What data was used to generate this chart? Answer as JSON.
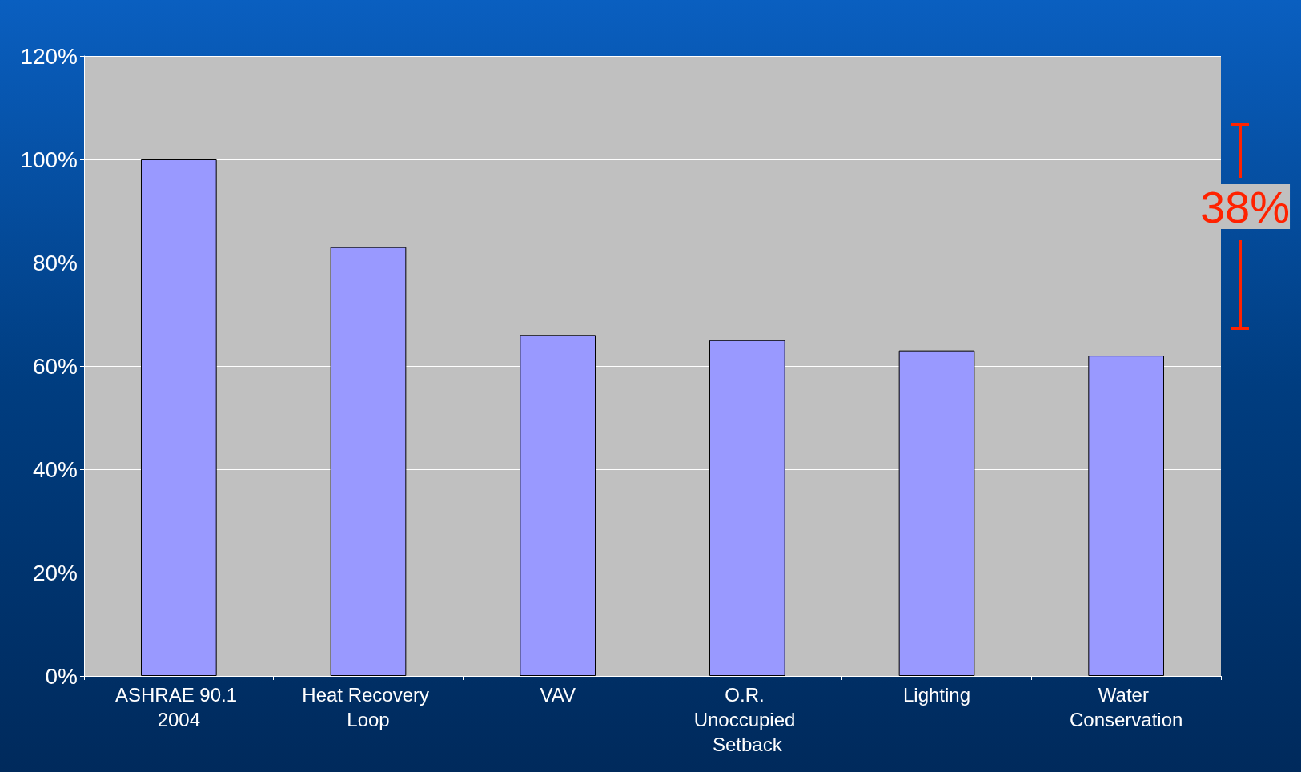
{
  "chart_data": {
    "type": "bar",
    "categories": [
      "ASHRAE 90.1 2004",
      "Heat Recovery Loop",
      "VAV",
      "O.R. Unoccupied Setback",
      "Lighting",
      "Water Conservation"
    ],
    "values": [
      100,
      83,
      66,
      65,
      63,
      62
    ],
    "color": "#9999ff",
    "ylim": [
      0,
      120
    ],
    "yticks": [
      {
        "value": 0,
        "label": "0%"
      },
      {
        "value": 20,
        "label": "20%"
      },
      {
        "value": 40,
        "label": "40%"
      },
      {
        "value": 60,
        "label": "60%"
      },
      {
        "value": 80,
        "label": "80%"
      },
      {
        "value": 100,
        "label": "100%"
      },
      {
        "value": 120,
        "label": "120%"
      }
    ],
    "grid": "y",
    "annotations": [
      "38%"
    ]
  }
}
